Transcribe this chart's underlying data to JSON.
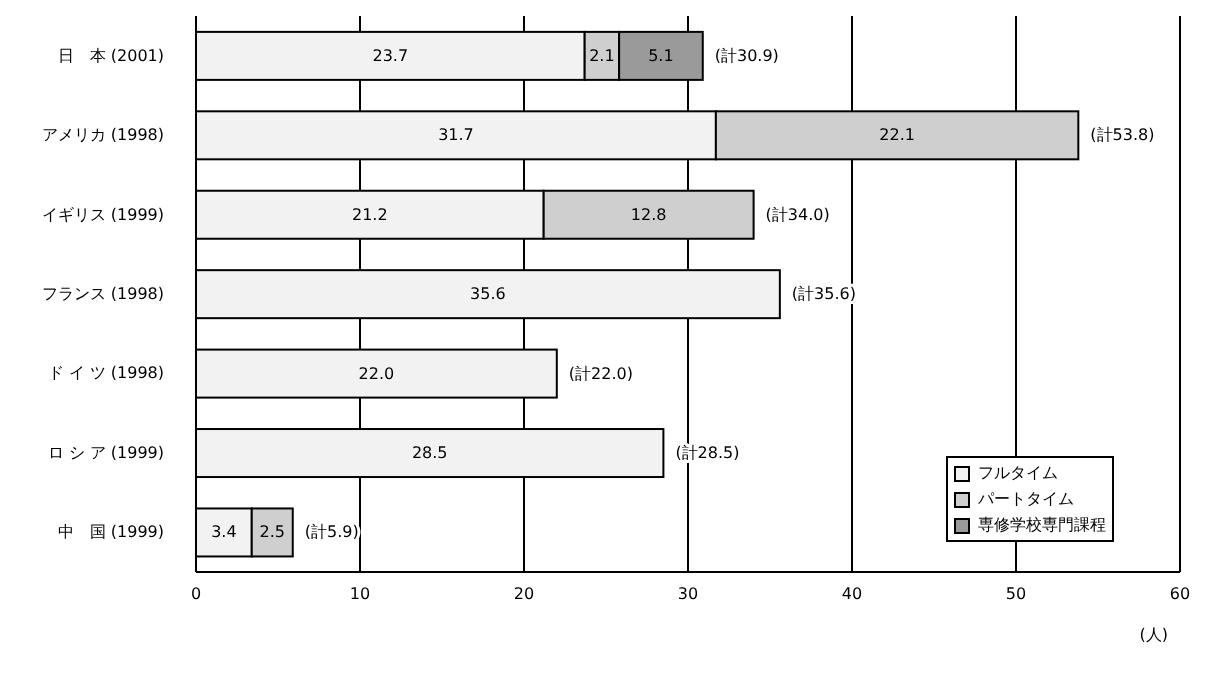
{
  "chart_data": {
    "type": "bar",
    "orientation": "horizontal",
    "stacked": true,
    "categories": [
      "日　本 (2001)",
      "アメリカ (1998)",
      "イギリス (1999)",
      "フランス (1998)",
      "ド イ ツ (1998)",
      "ロ シ ア (1999)",
      "中　国 (1999)"
    ],
    "series": [
      {
        "name": "フルタイム",
        "color": "#f2f2f2",
        "values": [
          23.7,
          31.7,
          21.2,
          35.6,
          22.0,
          28.5,
          3.4
        ],
        "value_labels": [
          "23.7",
          "31.7",
          "21.2",
          "35.6",
          "22.0",
          "28.5",
          "3.4"
        ]
      },
      {
        "name": "パートタイム",
        "color": "#cfcfcf",
        "values": [
          2.1,
          22.1,
          12.8,
          null,
          null,
          null,
          2.5
        ],
        "value_labels": [
          "2.1",
          "22.1",
          "12.8",
          null,
          null,
          null,
          "2.5"
        ]
      },
      {
        "name": "専修学校専門課程",
        "color": "#9a9a9a",
        "values": [
          5.1,
          null,
          null,
          null,
          null,
          null,
          null
        ],
        "value_labels": [
          "5.1",
          null,
          null,
          null,
          null,
          null,
          null
        ]
      }
    ],
    "totals": [
      "(計30.9)",
      "(計53.8)",
      "(計34.0)",
      "(計35.6)",
      "(計22.0)",
      "(計28.5)",
      "(計5.9)"
    ],
    "xlim": [
      0,
      60
    ],
    "xticks": [
      0,
      10,
      20,
      30,
      40,
      50,
      60
    ],
    "xlabel": "(人)",
    "grid": "x",
    "legend": "bottom right"
  }
}
